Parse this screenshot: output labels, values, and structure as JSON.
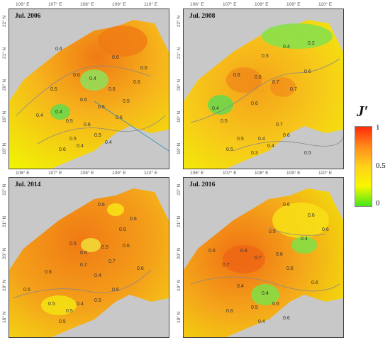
{
  "panels": [
    {
      "title": "Jul. 2006",
      "labels": [
        "0.6",
        "0.6",
        "0.6",
        "0.6",
        "0.6",
        "0.4",
        "0.4",
        "0.4",
        "0.6",
        "0.6",
        "0.5",
        "0.6",
        "0.6",
        "0.5",
        "0.5",
        "0.4",
        "0.6",
        "0.4",
        "0.5",
        "0.5",
        "0.6"
      ]
    },
    {
      "title": "Jul. 2008",
      "labels": [
        "0.4",
        "0.2",
        "0.5",
        "0.6",
        "0.6",
        "0.7",
        "0.7",
        "0.6",
        "0.4",
        "0.5",
        "0.6",
        "0.7",
        "0.4",
        "0.5",
        "0.5",
        "0.5",
        "0.3",
        "0.4",
        "0.6"
      ]
    },
    {
      "title": "Jul. 2014",
      "labels": [
        "0.6",
        "0.6",
        "0.5",
        "0.5",
        "0.6",
        "0.5",
        "0.6",
        "0.7",
        "0.6",
        "0.4",
        "0.7",
        "0.5",
        "0.5",
        "0.5",
        "0.4",
        "0.5",
        "0.6",
        "0.5",
        "0.6"
      ]
    },
    {
      "title": "Jul. 2016",
      "labels": [
        "0.6",
        "0.6",
        "0.6",
        "0.5",
        "0.4",
        "0.6",
        "0.7",
        "0.8",
        "0.7",
        "0.6",
        "0.6",
        "0.4",
        "0.4",
        "0.6",
        "0.5",
        "0.4",
        "0.6",
        "0.6",
        "0.6"
      ]
    }
  ],
  "axes": {
    "lon_ticks": [
      "106° E",
      "107° E",
      "108° E",
      "109° E",
      "110° E"
    ],
    "lat_ticks": [
      "22° N",
      "21° N",
      "20° N",
      "19° N",
      "18° N"
    ]
  },
  "legend": {
    "title": "J′",
    "max": "1",
    "mid": "0.5",
    "min": "0",
    "colors": [
      "#ff2a0a",
      "#ff8c1a",
      "#ffd21a",
      "#f7f700",
      "#46e71a"
    ]
  }
}
